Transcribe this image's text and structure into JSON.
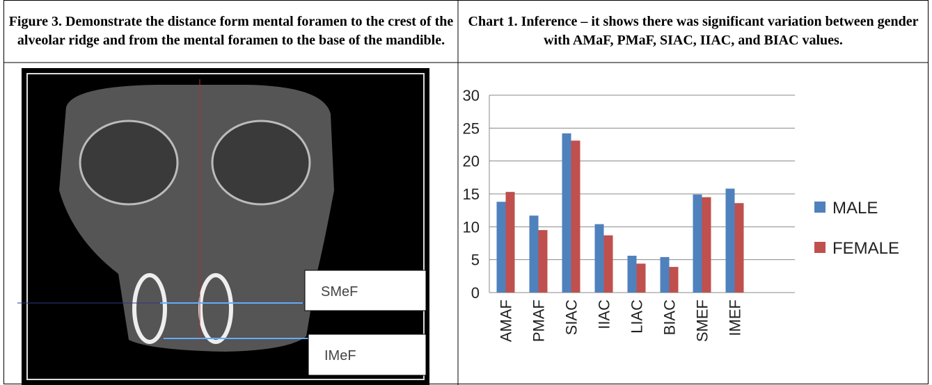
{
  "table": {
    "headers": [
      "Figure 3. Demonstrate the distance form mental foramen to the crest of the alveolar ridge and from the mental foramen to the base of the mandible.",
      "Chart 1. Inference – it shows there was significant variation between gender with AMaF, PMaF, SIAC, IIAC, and BIAC values."
    ]
  },
  "figure": {
    "labels": [
      "SMeF",
      "IMeF"
    ]
  },
  "chart_data": {
    "type": "bar",
    "categories": [
      "AMAF",
      "PMAF",
      "SIAC",
      "IIAC",
      "LIAC",
      "BIAC",
      "SMEF",
      "IMEF"
    ],
    "series": [
      {
        "name": "MALE",
        "color": "#4f81bd",
        "values": [
          13.8,
          11.7,
          24.2,
          10.4,
          5.6,
          5.4,
          14.9,
          15.8
        ]
      },
      {
        "name": "FEMALE",
        "color": "#c0504d",
        "values": [
          15.3,
          9.5,
          23.1,
          8.7,
          4.4,
          3.9,
          14.5,
          13.6
        ]
      }
    ],
    "ylim": [
      0,
      30
    ],
    "yticks": [
      0,
      5,
      10,
      15,
      20,
      25,
      30
    ],
    "grid": true,
    "legend": "right"
  }
}
